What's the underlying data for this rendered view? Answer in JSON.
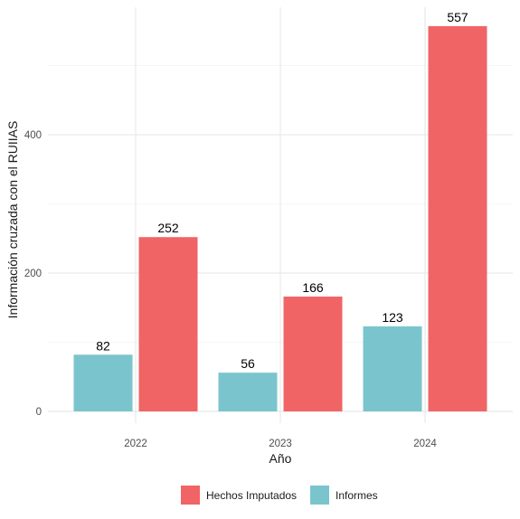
{
  "chart_data": {
    "type": "bar",
    "categories": [
      "2022",
      "2023",
      "2024"
    ],
    "series": [
      {
        "name": "Informes",
        "values": [
          82,
          56,
          123
        ],
        "color": "#7AC5CD"
      },
      {
        "name": "Hechos Imputados",
        "values": [
          252,
          166,
          557
        ],
        "color": "#F06466"
      }
    ],
    "xlabel": "Año",
    "ylabel": "Información cruzada con el RUIIAS",
    "ylim": [
      0,
      580
    ],
    "yticks": [
      0,
      200,
      400
    ],
    "grid": true,
    "legend": {
      "position": "bottom",
      "items": [
        "Hechos Imputados",
        "Informes"
      ]
    }
  }
}
